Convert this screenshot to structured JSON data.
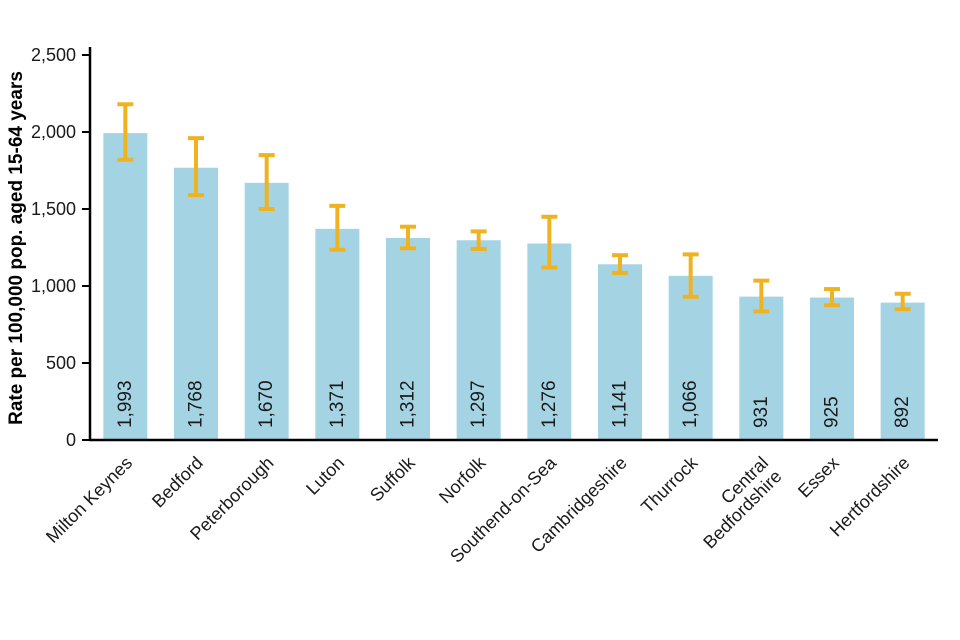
{
  "chart_data": {
    "type": "bar",
    "title": "",
    "subtitle": "",
    "xlabel": "",
    "ylabel": "Rate per 100,000 pop. aged 15-64 years",
    "ylim": [
      0,
      2500
    ],
    "yticks": [
      0,
      500,
      1000,
      1500,
      2000,
      2500
    ],
    "grid": false,
    "legend": false,
    "categories": [
      "Milton Keynes",
      "Bedford",
      "Peterborough",
      "Luton",
      "Suffolk",
      "Norfolk",
      "Southend-on-Sea",
      "Cambridgeshire",
      "Thurrock",
      "Central\nBedfordshire",
      "Essex",
      "Hertfordshire"
    ],
    "values": [
      1993,
      1768,
      1670,
      1371,
      1312,
      1297,
      1276,
      1141,
      1066,
      931,
      925,
      892
    ],
    "value_labels": [
      "1,993",
      "1,768",
      "1,670",
      "1,371",
      "1,312",
      "1,297",
      "1,276",
      "1,141",
      "1,066",
      "931",
      "925",
      "892"
    ],
    "ci": [
      [
        1820,
        2180
      ],
      [
        1590,
        1960
      ],
      [
        1500,
        1850
      ],
      [
        1235,
        1520
      ],
      [
        1245,
        1385
      ],
      [
        1240,
        1355
      ],
      [
        1120,
        1450
      ],
      [
        1085,
        1200
      ],
      [
        930,
        1205
      ],
      [
        835,
        1035
      ],
      [
        875,
        980
      ],
      [
        850,
        950
      ]
    ],
    "colors": {
      "bar": "#a4d4e4",
      "error": "#efb322",
      "axis": "#000000",
      "text": "#1a1a1a"
    }
  }
}
